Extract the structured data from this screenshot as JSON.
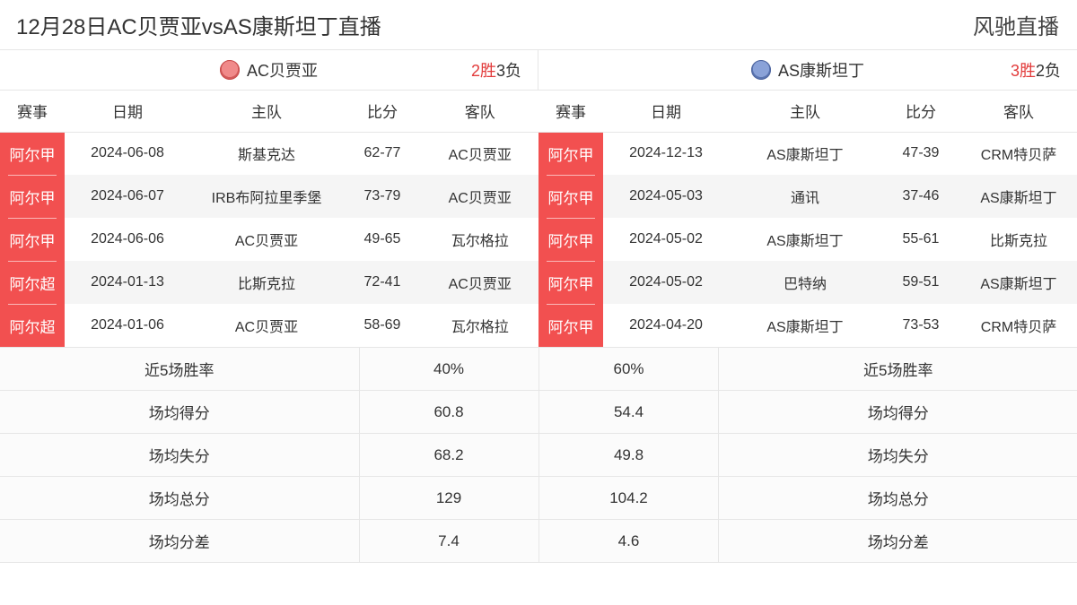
{
  "header": {
    "title": "12月28日AC贝贾亚vsAS康斯坦丁直播",
    "site": "风驰直播"
  },
  "columns": {
    "league": "赛事",
    "date": "日期",
    "home": "主队",
    "score": "比分",
    "away": "客队"
  },
  "colors": {
    "league_bg": "#f25050",
    "league_fg": "#ffffff",
    "win_color": "#e23b3b",
    "row_even_bg": "#f5f5f5",
    "row_odd_bg": "#ffffff",
    "border": "#e6e6e6"
  },
  "left": {
    "team_name": "AC贝贾亚",
    "record_win": "2胜",
    "record_loss": "3负",
    "matches": [
      {
        "league": "阿尔甲",
        "date": "2024-06-08",
        "home": "斯基克达",
        "score": "62-77",
        "away": "AC贝贾亚"
      },
      {
        "league": "阿尔甲",
        "date": "2024-06-07",
        "home": "IRB布阿拉里季堡",
        "score": "73-79",
        "away": "AC贝贾亚"
      },
      {
        "league": "阿尔甲",
        "date": "2024-06-06",
        "home": "AC贝贾亚",
        "score": "49-65",
        "away": "瓦尔格拉"
      },
      {
        "league": "阿尔超",
        "date": "2024-01-13",
        "home": "比斯克拉",
        "score": "72-41",
        "away": "AC贝贾亚"
      },
      {
        "league": "阿尔超",
        "date": "2024-01-06",
        "home": "AC贝贾亚",
        "score": "58-69",
        "away": "瓦尔格拉"
      }
    ],
    "stats": [
      {
        "label": "近5场胜率",
        "value": "40%"
      },
      {
        "label": "场均得分",
        "value": "60.8"
      },
      {
        "label": "场均失分",
        "value": "68.2"
      },
      {
        "label": "场均总分",
        "value": "129"
      },
      {
        "label": "场均分差",
        "value": "7.4"
      }
    ]
  },
  "right": {
    "team_name": "AS康斯坦丁",
    "record_win": "3胜",
    "record_loss": "2负",
    "matches": [
      {
        "league": "阿尔甲",
        "date": "2024-12-13",
        "home": "AS康斯坦丁",
        "score": "47-39",
        "away": "CRM特贝萨"
      },
      {
        "league": "阿尔甲",
        "date": "2024-05-03",
        "home": "通讯",
        "score": "37-46",
        "away": "AS康斯坦丁"
      },
      {
        "league": "阿尔甲",
        "date": "2024-05-02",
        "home": "AS康斯坦丁",
        "score": "55-61",
        "away": "比斯克拉"
      },
      {
        "league": "阿尔甲",
        "date": "2024-05-02",
        "home": "巴特纳",
        "score": "59-51",
        "away": "AS康斯坦丁"
      },
      {
        "league": "阿尔甲",
        "date": "2024-04-20",
        "home": "AS康斯坦丁",
        "score": "73-53",
        "away": "CRM特贝萨"
      }
    ],
    "stats": [
      {
        "label": "近5场胜率",
        "value": "60%"
      },
      {
        "label": "场均得分",
        "value": "54.4"
      },
      {
        "label": "场均失分",
        "value": "49.8"
      },
      {
        "label": "场均总分",
        "value": "104.2"
      },
      {
        "label": "场均分差",
        "value": "4.6"
      }
    ]
  }
}
